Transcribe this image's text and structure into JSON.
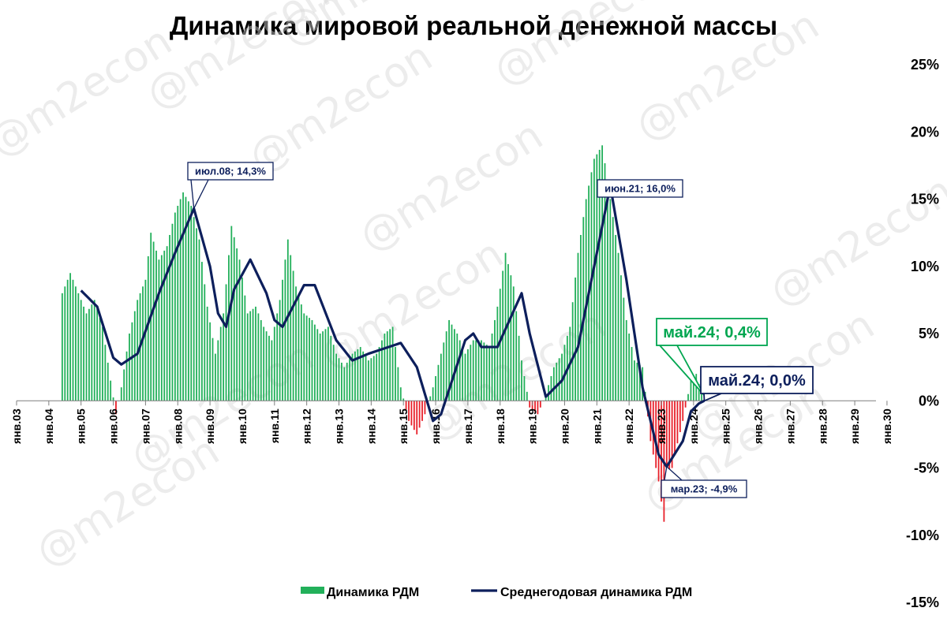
{
  "chart_data": {
    "type": "bar",
    "title": "Динамика мировой реальной денежной массы",
    "watermark": "@m2econ",
    "x_tick_labels": [
      "янв.03",
      "янв.04",
      "янв.05",
      "янв.06",
      "янв.07",
      "янв.08",
      "янв.09",
      "янв.10",
      "янв.11",
      "янв.12",
      "янв.13",
      "янв.14",
      "янв.15",
      "янв.16",
      "янв.17",
      "янв.18",
      "янв.19",
      "янв.20",
      "янв.21",
      "янв.22",
      "янв.23",
      "янв.24",
      "янв.25",
      "янв.26",
      "янв.27",
      "янв.28",
      "янв.29",
      "янв.30"
    ],
    "y_tick_labels": [
      "25%",
      "20%",
      "15%",
      "10%",
      "5%",
      "0%",
      "-5%",
      "-10%",
      "-15%"
    ],
    "ylim": [
      -15,
      25
    ],
    "y_axis_position": "right",
    "grid": false,
    "colors": {
      "positive_bar": "#22b05a",
      "negative_bar": "#e8202a",
      "line": "#0d1f5c",
      "callout_green": "#00a650"
    },
    "legend_position": "bottom",
    "series": [
      {
        "name": "Динамика РДМ",
        "kind": "bar",
        "anchors": [
          [
            "2004-06",
            8.0
          ],
          [
            "2004-09",
            9.5
          ],
          [
            "2004-12",
            8.0
          ],
          [
            "2005-03",
            6.5
          ],
          [
            "2005-06",
            7.5
          ],
          [
            "2005-09",
            5.5
          ],
          [
            "2005-12",
            1.5
          ],
          [
            "2006-02",
            -1.0
          ],
          [
            "2006-04",
            1.0
          ],
          [
            "2006-07",
            5.0
          ],
          [
            "2006-10",
            7.5
          ],
          [
            "2007-01",
            9.0
          ],
          [
            "2007-03",
            12.5
          ],
          [
            "2007-06",
            10.5
          ],
          [
            "2007-09",
            11.5
          ],
          [
            "2007-12",
            14.0
          ],
          [
            "2008-03",
            15.5
          ],
          [
            "2008-06",
            14.5
          ],
          [
            "2008-09",
            12.0
          ],
          [
            "2008-12",
            7.0
          ],
          [
            "2009-03",
            3.5
          ],
          [
            "2009-06",
            6.5
          ],
          [
            "2009-09",
            13.0
          ],
          [
            "2009-12",
            10.5
          ],
          [
            "2010-03",
            6.5
          ],
          [
            "2010-06",
            7.0
          ],
          [
            "2010-09",
            5.5
          ],
          [
            "2010-12",
            4.5
          ],
          [
            "2011-03",
            7.5
          ],
          [
            "2011-06",
            12.0
          ],
          [
            "2011-09",
            8.5
          ],
          [
            "2011-12",
            6.5
          ],
          [
            "2012-03",
            6.0
          ],
          [
            "2012-06",
            5.0
          ],
          [
            "2012-09",
            5.5
          ],
          [
            "2012-12",
            3.5
          ],
          [
            "2013-03",
            2.5
          ],
          [
            "2013-06",
            3.5
          ],
          [
            "2013-09",
            4.0
          ],
          [
            "2013-12",
            3.0
          ],
          [
            "2014-03",
            3.5
          ],
          [
            "2014-06",
            5.0
          ],
          [
            "2014-09",
            5.5
          ],
          [
            "2014-12",
            1.0
          ],
          [
            "2015-03",
            -1.5
          ],
          [
            "2015-06",
            -2.5
          ],
          [
            "2015-09",
            -1.0
          ],
          [
            "2015-12",
            1.0
          ],
          [
            "2016-03",
            3.5
          ],
          [
            "2016-06",
            6.0
          ],
          [
            "2016-09",
            5.0
          ],
          [
            "2016-12",
            3.5
          ],
          [
            "2017-03",
            4.5
          ],
          [
            "2017-06",
            4.5
          ],
          [
            "2017-09",
            4.0
          ],
          [
            "2017-12",
            7.0
          ],
          [
            "2018-03",
            11.0
          ],
          [
            "2018-06",
            8.5
          ],
          [
            "2018-09",
            3.0
          ],
          [
            "2018-12",
            -0.5
          ],
          [
            "2019-03",
            -1.0
          ],
          [
            "2019-06",
            0.5
          ],
          [
            "2019-09",
            2.5
          ],
          [
            "2019-12",
            3.5
          ],
          [
            "2020-03",
            5.5
          ],
          [
            "2020-06",
            11.0
          ],
          [
            "2020-09",
            15.0
          ],
          [
            "2020-12",
            18.0
          ],
          [
            "2021-03",
            19.0
          ],
          [
            "2021-06",
            15.0
          ],
          [
            "2021-09",
            11.0
          ],
          [
            "2021-12",
            6.0
          ],
          [
            "2022-03",
            3.0
          ],
          [
            "2022-06",
            2.5
          ],
          [
            "2022-09",
            -3.0
          ],
          [
            "2022-12",
            -6.0
          ],
          [
            "2023-02",
            -9.0
          ],
          [
            "2023-03",
            -7.0
          ],
          [
            "2023-06",
            -4.0
          ],
          [
            "2023-09",
            -1.5
          ],
          [
            "2023-12",
            1.5
          ],
          [
            "2024-02",
            2.0
          ],
          [
            "2024-04",
            0.5
          ],
          [
            "2024-05",
            0.4
          ]
        ]
      },
      {
        "name": "Среднегодовая динамика РДМ",
        "kind": "line",
        "anchors": [
          [
            "2005-01",
            8.2
          ],
          [
            "2005-07",
            7.0
          ],
          [
            "2006-01",
            3.2
          ],
          [
            "2006-04",
            2.7
          ],
          [
            "2006-10",
            3.5
          ],
          [
            "2007-06",
            8.0
          ],
          [
            "2007-12",
            11.0
          ],
          [
            "2008-07",
            14.3
          ],
          [
            "2009-01",
            10.0
          ],
          [
            "2009-04",
            6.5
          ],
          [
            "2009-07",
            5.5
          ],
          [
            "2009-10",
            8.3
          ],
          [
            "2010-04",
            10.5
          ],
          [
            "2010-10",
            8.0
          ],
          [
            "2011-01",
            6.0
          ],
          [
            "2011-04",
            5.5
          ],
          [
            "2011-12",
            8.6
          ],
          [
            "2012-04",
            8.6
          ],
          [
            "2012-12",
            4.5
          ],
          [
            "2013-06",
            3.0
          ],
          [
            "2013-12",
            3.5
          ],
          [
            "2014-12",
            4.3
          ],
          [
            "2015-06",
            2.5
          ],
          [
            "2015-12",
            -1.5
          ],
          [
            "2016-03",
            -1.0
          ],
          [
            "2016-12",
            4.5
          ],
          [
            "2017-03",
            5.0
          ],
          [
            "2017-06",
            4.0
          ],
          [
            "2017-12",
            4.0
          ],
          [
            "2018-09",
            8.0
          ],
          [
            "2018-12",
            5.0
          ],
          [
            "2019-06",
            0.3
          ],
          [
            "2019-12",
            1.5
          ],
          [
            "2020-06",
            4.0
          ],
          [
            "2020-12",
            10.0
          ],
          [
            "2021-06",
            16.0
          ],
          [
            "2021-12",
            9.0
          ],
          [
            "2022-06",
            1.0
          ],
          [
            "2022-12",
            -4.0
          ],
          [
            "2023-03",
            -4.9
          ],
          [
            "2023-09",
            -3.0
          ],
          [
            "2023-12",
            -0.8
          ],
          [
            "2024-03",
            -0.2
          ],
          [
            "2024-05",
            0.0
          ]
        ]
      }
    ],
    "annotations": [
      {
        "id": "jul08",
        "text": "июл.08; 14,3%",
        "x": "2008-07",
        "y": 14.3,
        "style": "small"
      },
      {
        "id": "jun21",
        "text": "июн.21; 16,0%",
        "x": "2021-06",
        "y": 16.0,
        "style": "small"
      },
      {
        "id": "mar23",
        "text": "мар.23; -4,9%",
        "x": "2023-03",
        "y": -4.9,
        "style": "small"
      },
      {
        "id": "may24bar",
        "text": "май.24; 0,4%",
        "x": "2024-05",
        "y": 0.4,
        "style": "green"
      },
      {
        "id": "may24line",
        "text": "май.24; 0,0%",
        "x": "2024-05",
        "y": 0.0,
        "style": "navy"
      }
    ]
  }
}
